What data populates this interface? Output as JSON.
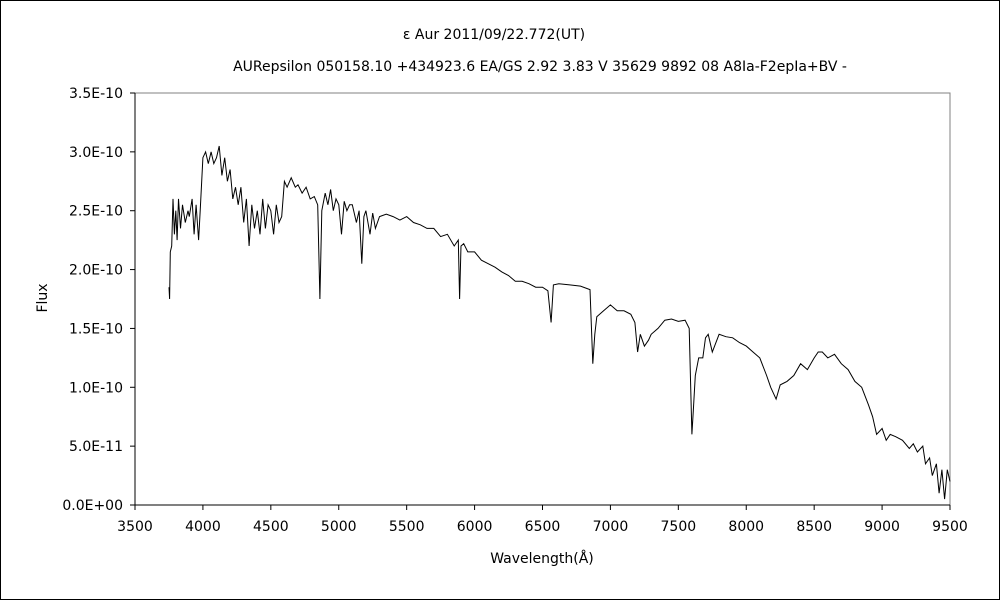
{
  "chart_data": {
    "type": "line",
    "title": "ε Aur   2011/09/22.772(UT)",
    "subtitle": "AURepsilon 050158.10 +434923.6 EA/GS 2.92 3.83 V 35629 9892 08 A8Ia-F2epIa+BV -",
    "xlabel": "Wavelength(Å)",
    "ylabel": "Flux",
    "xlim": [
      3500,
      9500
    ],
    "ylim": [
      0,
      3.5e-10
    ],
    "x_ticks": [
      "3500",
      "4000",
      "4500",
      "5000",
      "5500",
      "6000",
      "6500",
      "7000",
      "7500",
      "8000",
      "8500",
      "9000",
      "9500"
    ],
    "y_ticks": [
      "0.0E+00",
      "5.0E-11",
      "1.0E-10",
      "1.5E-10",
      "2.0E-10",
      "2.5E-10",
      "3.0E-10",
      "3.5E-10"
    ],
    "grid": false,
    "series": [
      {
        "name": "Flux",
        "unit_scale": 1e-10,
        "x": [
          3750,
          3755,
          3760,
          3770,
          3780,
          3790,
          3800,
          3810,
          3820,
          3835,
          3850,
          3870,
          3890,
          3900,
          3920,
          3935,
          3950,
          3968,
          3980,
          4000,
          4020,
          4040,
          4060,
          4080,
          4100,
          4120,
          4140,
          4160,
          4180,
          4200,
          4220,
          4240,
          4260,
          4280,
          4300,
          4320,
          4340,
          4360,
          4380,
          4400,
          4420,
          4440,
          4460,
          4480,
          4500,
          4520,
          4540,
          4560,
          4580,
          4600,
          4620,
          4650,
          4680,
          4700,
          4730,
          4760,
          4790,
          4820,
          4845,
          4861,
          4875,
          4900,
          4920,
          4940,
          4960,
          4980,
          5000,
          5020,
          5040,
          5060,
          5080,
          5100,
          5130,
          5150,
          5170,
          5185,
          5200,
          5230,
          5250,
          5270,
          5300,
          5350,
          5400,
          5450,
          5500,
          5550,
          5600,
          5650,
          5700,
          5750,
          5800,
          5850,
          5880,
          5890,
          5900,
          5920,
          5950,
          6000,
          6050,
          6100,
          6150,
          6200,
          6250,
          6300,
          6350,
          6400,
          6450,
          6500,
          6540,
          6563,
          6580,
          6620,
          6700,
          6780,
          6850,
          6870,
          6885,
          6900,
          6950,
          7000,
          7050,
          7100,
          7150,
          7180,
          7200,
          7220,
          7250,
          7280,
          7300,
          7350,
          7400,
          7450,
          7500,
          7550,
          7580,
          7600,
          7610,
          7625,
          7650,
          7680,
          7700,
          7720,
          7750,
          7800,
          7850,
          7900,
          7950,
          8000,
          8050,
          8100,
          8150,
          8180,
          8200,
          8220,
          8250,
          8300,
          8350,
          8400,
          8450,
          8500,
          8530,
          8560,
          8600,
          8650,
          8700,
          8750,
          8800,
          8850,
          8900,
          8930,
          8960,
          9000,
          9030,
          9060,
          9100,
          9150,
          9200,
          9230,
          9260,
          9300,
          9320,
          9350,
          9370,
          9400,
          9420,
          9440,
          9460,
          9480,
          9500
        ],
        "y": [
          1.85,
          1.75,
          2.15,
          2.2,
          2.6,
          2.3,
          2.5,
          2.25,
          2.6,
          2.35,
          2.55,
          2.4,
          2.5,
          2.45,
          2.6,
          2.3,
          2.55,
          2.25,
          2.5,
          2.95,
          3.0,
          2.9,
          3.0,
          2.9,
          2.95,
          3.05,
          2.8,
          2.95,
          2.75,
          2.85,
          2.6,
          2.7,
          2.55,
          2.7,
          2.4,
          2.6,
          2.2,
          2.55,
          2.35,
          2.5,
          2.3,
          2.6,
          2.35,
          2.55,
          2.5,
          2.3,
          2.55,
          2.4,
          2.45,
          2.75,
          2.7,
          2.78,
          2.7,
          2.72,
          2.65,
          2.7,
          2.6,
          2.62,
          2.55,
          1.75,
          2.5,
          2.65,
          2.55,
          2.68,
          2.5,
          2.6,
          2.55,
          2.3,
          2.58,
          2.5,
          2.55,
          2.55,
          2.4,
          2.5,
          2.05,
          2.45,
          2.5,
          2.3,
          2.48,
          2.35,
          2.45,
          2.47,
          2.45,
          2.42,
          2.45,
          2.4,
          2.38,
          2.35,
          2.35,
          2.28,
          2.3,
          2.2,
          2.25,
          1.75,
          2.2,
          2.22,
          2.15,
          2.15,
          2.08,
          2.05,
          2.02,
          1.98,
          1.95,
          1.9,
          1.9,
          1.88,
          1.85,
          1.85,
          1.82,
          1.55,
          1.87,
          1.88,
          1.87,
          1.86,
          1.83,
          1.2,
          1.45,
          1.6,
          1.65,
          1.7,
          1.65,
          1.65,
          1.62,
          1.55,
          1.3,
          1.45,
          1.35,
          1.4,
          1.45,
          1.5,
          1.57,
          1.58,
          1.56,
          1.57,
          1.5,
          0.6,
          0.8,
          1.1,
          1.25,
          1.25,
          1.42,
          1.45,
          1.3,
          1.45,
          1.43,
          1.42,
          1.38,
          1.35,
          1.3,
          1.25,
          1.1,
          1.0,
          0.95,
          0.9,
          1.02,
          1.05,
          1.1,
          1.2,
          1.15,
          1.25,
          1.3,
          1.3,
          1.25,
          1.28,
          1.2,
          1.15,
          1.05,
          1.0,
          0.85,
          0.75,
          0.6,
          0.65,
          0.55,
          0.6,
          0.58,
          0.55,
          0.48,
          0.52,
          0.45,
          0.5,
          0.35,
          0.4,
          0.25,
          0.35,
          0.1,
          0.3,
          0.05,
          0.3,
          0.2
        ]
      }
    ]
  }
}
